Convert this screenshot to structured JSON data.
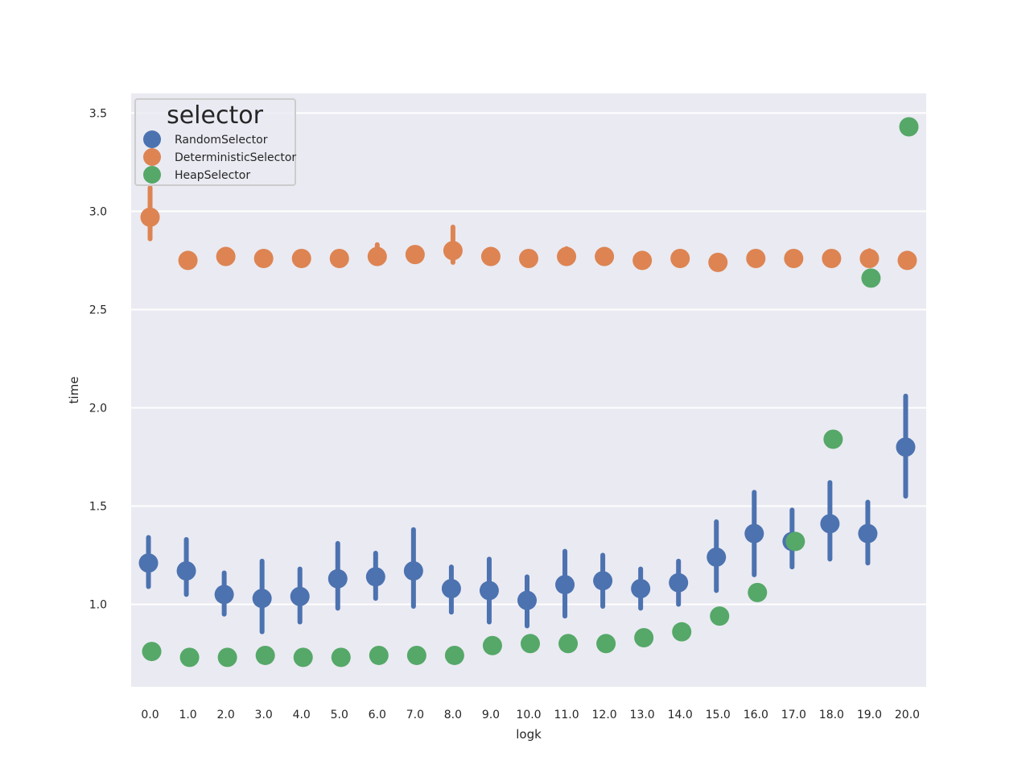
{
  "chart_data": {
    "type": "scatter",
    "xlabel": "logk",
    "ylabel": "time",
    "ylim": [
      0.58,
      3.6
    ],
    "y_ticks": [
      "1.0",
      "1.5",
      "2.0",
      "2.5",
      "3.0",
      "3.5"
    ],
    "categories": [
      "0.0",
      "1.0",
      "2.0",
      "3.0",
      "4.0",
      "5.0",
      "6.0",
      "7.0",
      "8.0",
      "9.0",
      "10.0",
      "11.0",
      "12.0",
      "13.0",
      "14.0",
      "15.0",
      "16.0",
      "17.0",
      "18.0",
      "19.0",
      "20.0"
    ],
    "grid": true,
    "background_color": "#eaeaf2",
    "legend": {
      "title": "selector",
      "placement": "top-left",
      "entries": [
        "RandomSelector",
        "DeterministicSelector",
        "HeapSelector"
      ]
    },
    "series": [
      {
        "name": "RandomSelector",
        "color": "#4c72b0",
        "values": [
          1.21,
          1.17,
          1.05,
          1.03,
          1.04,
          1.13,
          1.14,
          1.17,
          1.08,
          1.07,
          1.02,
          1.1,
          1.12,
          1.08,
          1.11,
          1.24,
          1.36,
          1.32,
          1.41,
          1.36,
          1.8
        ],
        "ci_low": [
          1.09,
          1.05,
          0.95,
          0.86,
          0.91,
          0.98,
          1.03,
          0.99,
          0.96,
          0.91,
          0.89,
          0.94,
          0.99,
          0.98,
          1.0,
          1.07,
          1.15,
          1.19,
          1.23,
          1.21,
          1.55
        ],
        "ci_high": [
          1.34,
          1.33,
          1.16,
          1.22,
          1.18,
          1.31,
          1.26,
          1.38,
          1.19,
          1.23,
          1.14,
          1.27,
          1.25,
          1.18,
          1.22,
          1.42,
          1.57,
          1.48,
          1.62,
          1.52,
          2.06
        ]
      },
      {
        "name": "DeterministicSelector",
        "color": "#dd8452",
        "values": [
          2.97,
          2.75,
          2.77,
          2.76,
          2.76,
          2.76,
          2.77,
          2.78,
          2.8,
          2.77,
          2.76,
          2.77,
          2.77,
          2.75,
          2.76,
          2.74,
          2.76,
          2.76,
          2.76,
          2.76,
          2.75
        ],
        "ci_low": [
          2.86,
          2.74,
          2.76,
          2.75,
          2.75,
          2.75,
          2.75,
          2.77,
          2.74,
          2.76,
          2.75,
          2.76,
          2.76,
          2.74,
          2.75,
          2.73,
          2.75,
          2.75,
          2.75,
          2.75,
          2.74
        ],
        "ci_high": [
          3.12,
          2.77,
          2.79,
          2.78,
          2.78,
          2.78,
          2.83,
          2.8,
          2.92,
          2.79,
          2.78,
          2.81,
          2.79,
          2.77,
          2.78,
          2.77,
          2.79,
          2.78,
          2.78,
          2.8,
          2.77
        ]
      },
      {
        "name": "HeapSelector",
        "color": "#55a868",
        "values": [
          0.76,
          0.73,
          0.73,
          0.74,
          0.73,
          0.73,
          0.74,
          0.74,
          0.74,
          0.79,
          0.8,
          0.8,
          0.8,
          0.83,
          0.86,
          0.94,
          1.06,
          1.32,
          1.84,
          2.66,
          3.43
        ]
      }
    ]
  }
}
